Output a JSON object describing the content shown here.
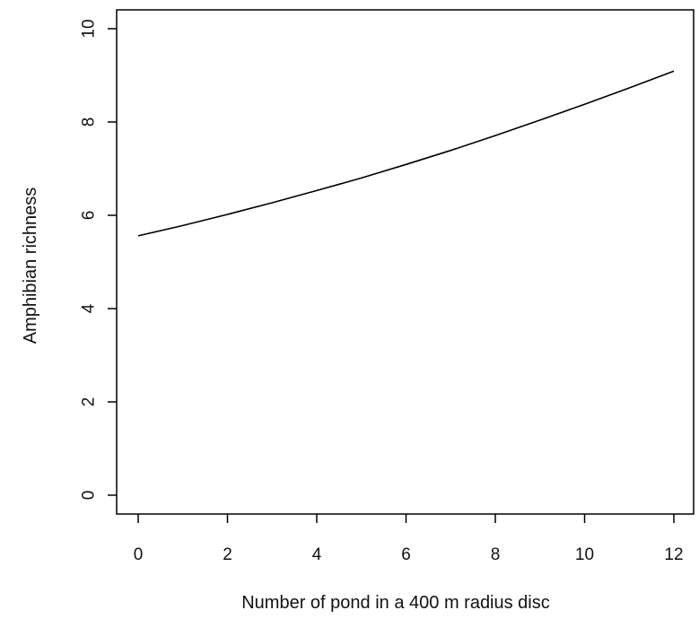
{
  "chart_data": {
    "type": "line",
    "title": "",
    "xlabel": "Number of pond in a 400 m radius disc",
    "ylabel": "Amphibian richness",
    "xlim": [
      0,
      12
    ],
    "ylim": [
      0,
      10
    ],
    "xticks": [
      0,
      2,
      4,
      6,
      8,
      10,
      12
    ],
    "yticks": [
      0,
      2,
      4,
      6,
      8,
      10
    ],
    "grid": false,
    "legend": "none",
    "series": [
      {
        "color": "#000000",
        "x": [
          0,
          1,
          2,
          3,
          4,
          5,
          6,
          7,
          8,
          9,
          10,
          11,
          12
        ],
        "y": [
          5.56,
          5.78,
          6.02,
          6.27,
          6.53,
          6.8,
          7.09,
          7.39,
          7.71,
          8.04,
          8.38,
          8.73,
          9.09
        ]
      }
    ]
  }
}
